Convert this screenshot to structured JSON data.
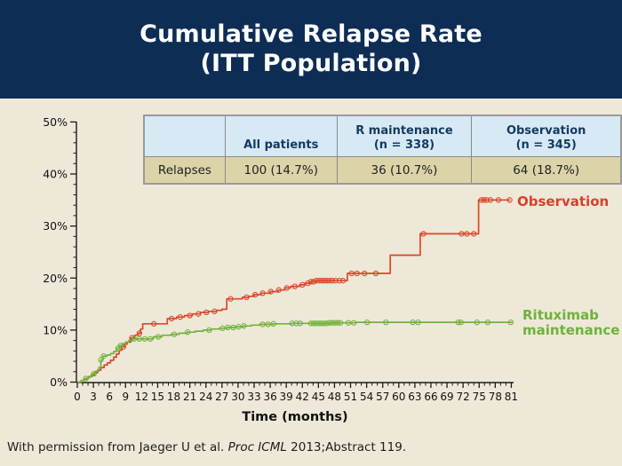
{
  "slide": {
    "title": "Cumulative Relapse Rate\n(ITT Population)",
    "footer": {
      "prefix": "With permission from Jaeger U et al. ",
      "italic": "Proc ICML",
      "suffix": " 2013;Abstract 119."
    }
  },
  "table": {
    "headers": [
      "",
      "All patients",
      "R maintenance\n(n = 338)",
      "Observation\n(n = 345)"
    ],
    "rows": [
      [
        "Relapses",
        "100 (14.7%)",
        "36 (10.7%)",
        "64 (18.7%)"
      ]
    ]
  },
  "chart_data": {
    "type": "line",
    "subtype": "step",
    "title": "",
    "xlabel": "Time (months)",
    "ylabel": "",
    "xlim": [
      0,
      81
    ],
    "ylim": [
      0,
      50
    ],
    "x_ticks": [
      0,
      3,
      6,
      9,
      12,
      15,
      18,
      21,
      24,
      27,
      30,
      33,
      36,
      39,
      42,
      45,
      48,
      51,
      54,
      57,
      60,
      63,
      66,
      69,
      72,
      75,
      78,
      81
    ],
    "y_ticks": [
      "0%",
      "10%",
      "20%",
      "30%",
      "40%",
      "50%"
    ],
    "grid": false,
    "legend_position": "right-of-curve-end",
    "series": [
      {
        "name": "Observation",
        "color": "#d9482a",
        "points": [
          [
            0,
            0
          ],
          [
            0.7,
            0.3
          ],
          [
            1.3,
            0.6
          ],
          [
            2,
            1.0
          ],
          [
            2.6,
            1.4
          ],
          [
            3.2,
            1.8
          ],
          [
            3.8,
            2.3
          ],
          [
            4.4,
            2.8
          ],
          [
            5,
            3.3
          ],
          [
            5.6,
            3.7
          ],
          [
            6.2,
            4.2
          ],
          [
            6.8,
            4.8
          ],
          [
            7.3,
            5.4
          ],
          [
            7.8,
            6.1
          ],
          [
            8.3,
            6.8
          ],
          [
            8.8,
            7.3
          ],
          [
            9.3,
            7.7
          ],
          [
            10,
            8.5
          ],
          [
            10.7,
            9.0
          ],
          [
            11.3,
            9.4
          ],
          [
            11.8,
            10.2
          ],
          [
            12.2,
            11.2
          ],
          [
            16.8,
            12.2
          ],
          [
            18.5,
            12.5
          ],
          [
            20,
            12.8
          ],
          [
            21.5,
            13.1
          ],
          [
            23,
            13.4
          ],
          [
            24.5,
            13.6
          ],
          [
            26,
            13.8
          ],
          [
            27,
            14.0
          ],
          [
            27.9,
            16.0
          ],
          [
            30.8,
            16.3
          ],
          [
            32,
            16.5
          ],
          [
            33,
            16.8
          ],
          [
            34.3,
            17.1
          ],
          [
            36,
            17.4
          ],
          [
            37.5,
            17.7
          ],
          [
            38.7,
            18.1
          ],
          [
            39.8,
            18.4
          ],
          [
            41.5,
            18.7
          ],
          [
            42.5,
            19.0
          ],
          [
            43.5,
            19.3
          ],
          [
            44.5,
            19.5
          ],
          [
            50.4,
            20.9
          ],
          [
            58.4,
            24.4
          ],
          [
            64,
            28.5
          ],
          [
            74.9,
            35.0
          ],
          [
            80.8,
            35.0
          ]
        ],
        "censor_marks_months": [
          8.6,
          10.2,
          11.6,
          14.3,
          17.6,
          19.2,
          21,
          22.6,
          24.1,
          25.6,
          28.6,
          31.6,
          33.2,
          34.6,
          36.1,
          37.6,
          39.1,
          40.6,
          42,
          43,
          43.6,
          44.1,
          44.6,
          45.1,
          45.6,
          46.1,
          46.6,
          47.1,
          47.6,
          48.2,
          48.9,
          49.6,
          51.2,
          52.2,
          53.6,
          55.7,
          64.6,
          71.7,
          72.7,
          74,
          75.4,
          75.9,
          76.4,
          77.1,
          78.6,
          80.7
        ]
      },
      {
        "name": "Rituximab\nmaintenance",
        "color": "#72b33c",
        "points": [
          [
            0,
            0
          ],
          [
            0.7,
            0.3
          ],
          [
            1.4,
            0.7
          ],
          [
            2.1,
            1.1
          ],
          [
            2.8,
            1.6
          ],
          [
            3.4,
            2.1
          ],
          [
            4,
            2.8
          ],
          [
            4.4,
            4.3
          ],
          [
            4.8,
            5.0
          ],
          [
            5.5,
            5.2
          ],
          [
            6.2,
            5.5
          ],
          [
            6.8,
            5.9
          ],
          [
            7.4,
            6.5
          ],
          [
            7.9,
            7.0
          ],
          [
            8.4,
            7.4
          ],
          [
            9,
            7.7
          ],
          [
            9.6,
            8.0
          ],
          [
            10.3,
            8.3
          ],
          [
            14.2,
            8.7
          ],
          [
            15.8,
            9.0
          ],
          [
            17.5,
            9.2
          ],
          [
            19,
            9.4
          ],
          [
            20.5,
            9.6
          ],
          [
            22,
            9.8
          ],
          [
            23.5,
            10.0
          ],
          [
            25,
            10.2
          ],
          [
            26.5,
            10.35
          ],
          [
            28,
            10.5
          ],
          [
            29.5,
            10.65
          ],
          [
            31,
            10.8
          ],
          [
            32.5,
            10.95
          ],
          [
            34,
            11.1
          ],
          [
            36.5,
            11.2
          ],
          [
            40,
            11.3
          ],
          [
            47,
            11.4
          ],
          [
            52,
            11.5
          ],
          [
            81.2,
            11.5
          ]
        ],
        "censor_marks_months": [
          1.6,
          3.1,
          4.4,
          4.9,
          7.6,
          8.1,
          10.6,
          11.6,
          12.6,
          13.6,
          15.1,
          18.1,
          20.6,
          24.6,
          27.1,
          28.1,
          29.1,
          30.1,
          31.1,
          34.6,
          35.6,
          36.6,
          40.1,
          40.9,
          41.6,
          43.6,
          44.1,
          44.6,
          45.1,
          45.6,
          46.1,
          46.6,
          47.1,
          47.6,
          48.1,
          48.6,
          49.1,
          50.6,
          51.6,
          54.1,
          57.6,
          62.6,
          63.6,
          71.1,
          71.6,
          74.6,
          76.6,
          80.9
        ]
      }
    ]
  },
  "colors": {
    "header_bg": "#0d2d55",
    "slide_bg": "#eee8d8",
    "table_header_bg": "#d7e9f5",
    "table_row_bg": "#dcd3a9",
    "table_border": "#8a8a8a",
    "axis": "#1c1c1c",
    "observation": "#d9482a",
    "rituximab": "#72b33c"
  }
}
